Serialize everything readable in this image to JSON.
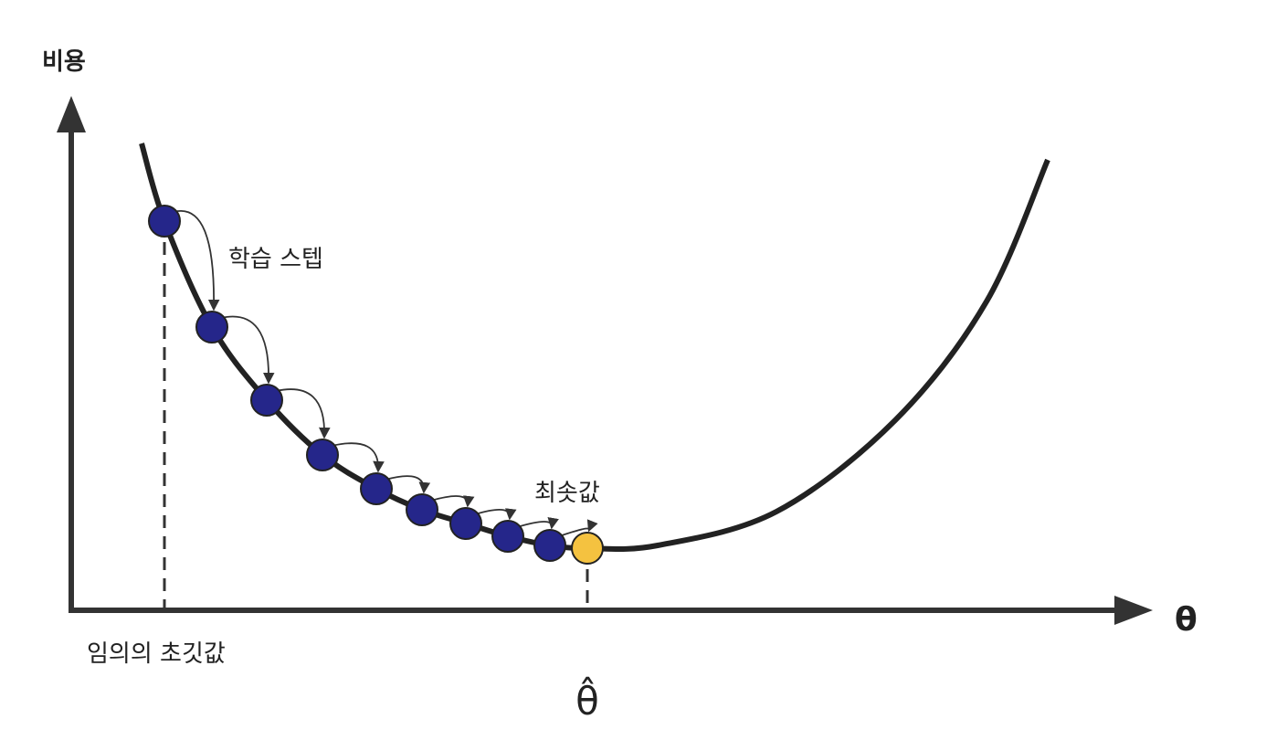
{
  "axes": {
    "y_label": "비용",
    "x_label": "θ"
  },
  "annotations": {
    "steps": "학습 스텝",
    "minimum": "최솟값",
    "initial": "임의의 초깃값",
    "theta_hat": "θ̂"
  }
}
